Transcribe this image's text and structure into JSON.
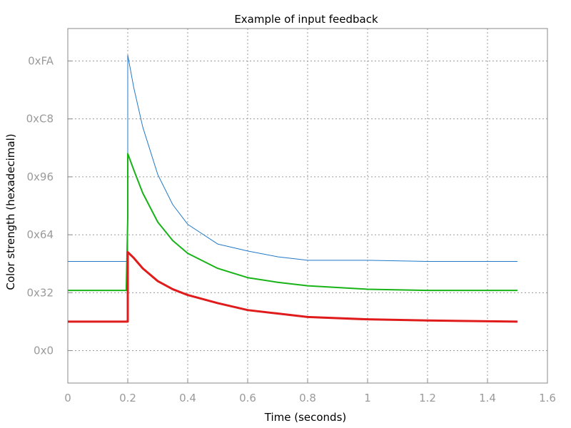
{
  "chart_data": {
    "type": "line",
    "title": "Example of input feedback",
    "xlabel": "Time (seconds)",
    "ylabel": "Color strength (hexadecimal)",
    "xlim": [
      0,
      1.6
    ],
    "ylim": [
      -28,
      278
    ],
    "x_ticks": [
      0,
      0.2,
      0.4,
      0.6,
      0.8,
      1,
      1.2,
      1.4,
      1.6
    ],
    "x_tick_labels": [
      "0",
      "0.2",
      "0.4",
      "0.6",
      "0.8",
      "1",
      "1.2",
      "1.4",
      "1.6"
    ],
    "y_ticks": [
      0,
      50,
      100,
      150,
      200,
      250
    ],
    "y_tick_labels": [
      "0x0",
      "0x32",
      "0x64",
      "0x96",
      "0xC8",
      "0xFA"
    ],
    "grid": true,
    "legend": false,
    "series": [
      {
        "color": "#1f78c8",
        "values": [
          [
            0,
            77
          ],
          [
            0.2,
            77
          ],
          [
            0.2,
            255
          ],
          [
            0.22,
            227
          ],
          [
            0.25,
            193
          ],
          [
            0.3,
            152
          ],
          [
            0.35,
            126
          ],
          [
            0.4,
            109
          ],
          [
            0.5,
            92
          ],
          [
            0.6,
            86
          ],
          [
            0.7,
            81
          ],
          [
            0.8,
            78
          ],
          [
            1.0,
            78
          ],
          [
            1.2,
            77
          ],
          [
            1.5,
            77
          ]
        ]
      },
      {
        "color": "#17b317",
        "values": [
          [
            0,
            52
          ],
          [
            0.195,
            52
          ],
          [
            0.2,
            115
          ],
          [
            0.2,
            170
          ],
          [
            0.22,
            156
          ],
          [
            0.25,
            136
          ],
          [
            0.3,
            111
          ],
          [
            0.35,
            95
          ],
          [
            0.4,
            84
          ],
          [
            0.5,
            71
          ],
          [
            0.6,
            63
          ],
          [
            0.7,
            59
          ],
          [
            0.8,
            56
          ],
          [
            1.0,
            53
          ],
          [
            1.2,
            52
          ],
          [
            1.5,
            52
          ]
        ]
      },
      {
        "color": "#e01b1b",
        "values": [
          [
            0,
            25
          ],
          [
            0.2,
            25
          ],
          [
            0.2,
            85
          ],
          [
            0.22,
            80
          ],
          [
            0.25,
            71
          ],
          [
            0.3,
            60
          ],
          [
            0.35,
            53
          ],
          [
            0.4,
            48
          ],
          [
            0.5,
            41
          ],
          [
            0.6,
            35
          ],
          [
            0.7,
            32
          ],
          [
            0.8,
            29
          ],
          [
            1.0,
            27
          ],
          [
            1.2,
            26
          ],
          [
            1.5,
            25
          ]
        ]
      }
    ]
  }
}
